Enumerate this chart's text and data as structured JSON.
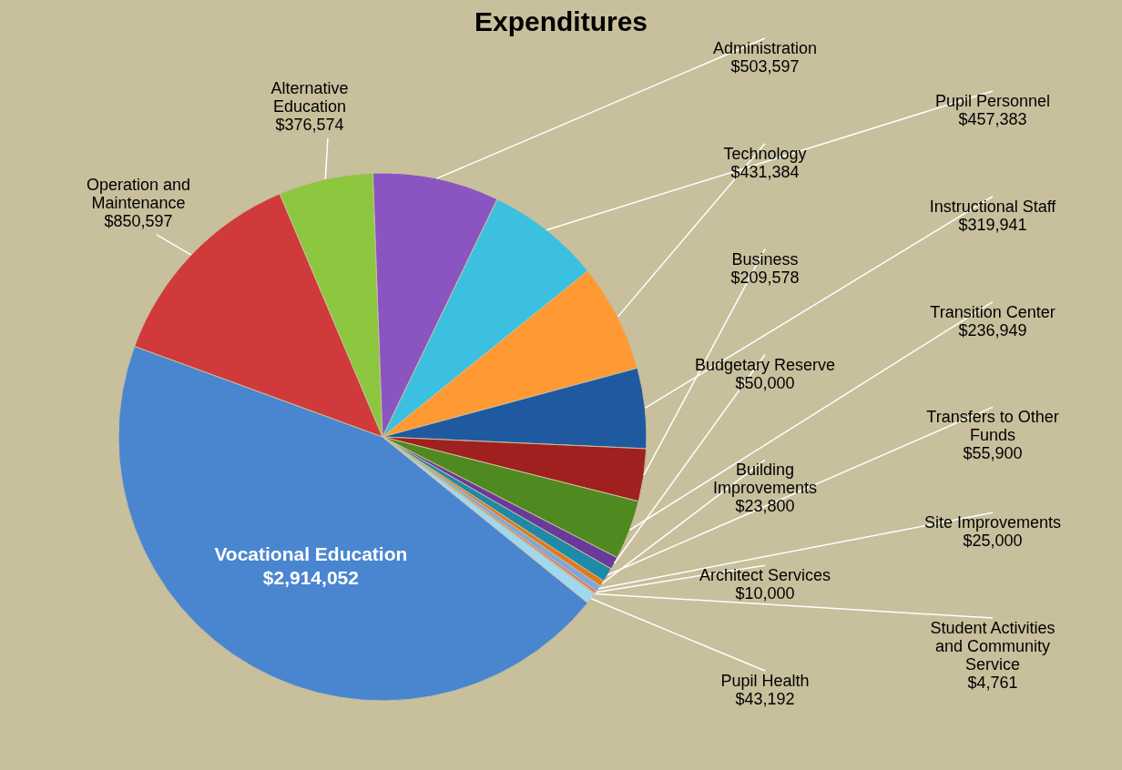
{
  "chart_data": {
    "type": "pie",
    "title": "Expenditures",
    "categories": [
      "Vocational Education",
      "Operation and Maintenance",
      "Alternative Education",
      "Administration",
      "Pupil Personnel",
      "Technology",
      "Instructional Staff",
      "Business",
      "Transition Center",
      "Budgetary Reserve",
      "Transfers to Other Funds",
      "Building Improvements",
      "Site Improvements",
      "Architect Services",
      "Student Activities and Community Service",
      "Pupil Health"
    ],
    "values": [
      2914052,
      850597,
      376574,
      503597,
      457383,
      431384,
      319941,
      209578,
      236949,
      50000,
      55900,
      23800,
      25000,
      10000,
      4761,
      43192
    ],
    "value_labels": [
      "$2,914,052",
      "$850,597",
      "$376,574",
      "$503,597",
      "$457,383",
      "$431,384",
      "$319,941",
      "$209,578",
      "$236,949",
      "$50,000",
      "$55,900",
      "$23,800",
      "$25,000",
      "$10,000",
      "$4,761",
      "$43,192"
    ],
    "colors": [
      "#4a86d0",
      "#d03a3a",
      "#8dc63f",
      "#8a55c0",
      "#3cc0e0",
      "#ff9933",
      "#1f5aa0",
      "#a02020",
      "#4f8a20",
      "#6a3a9a",
      "#1f8aa8",
      "#e07a20",
      "#7aa8e0",
      "#e07070",
      "#b0d070",
      "#a0d8f0"
    ]
  }
}
